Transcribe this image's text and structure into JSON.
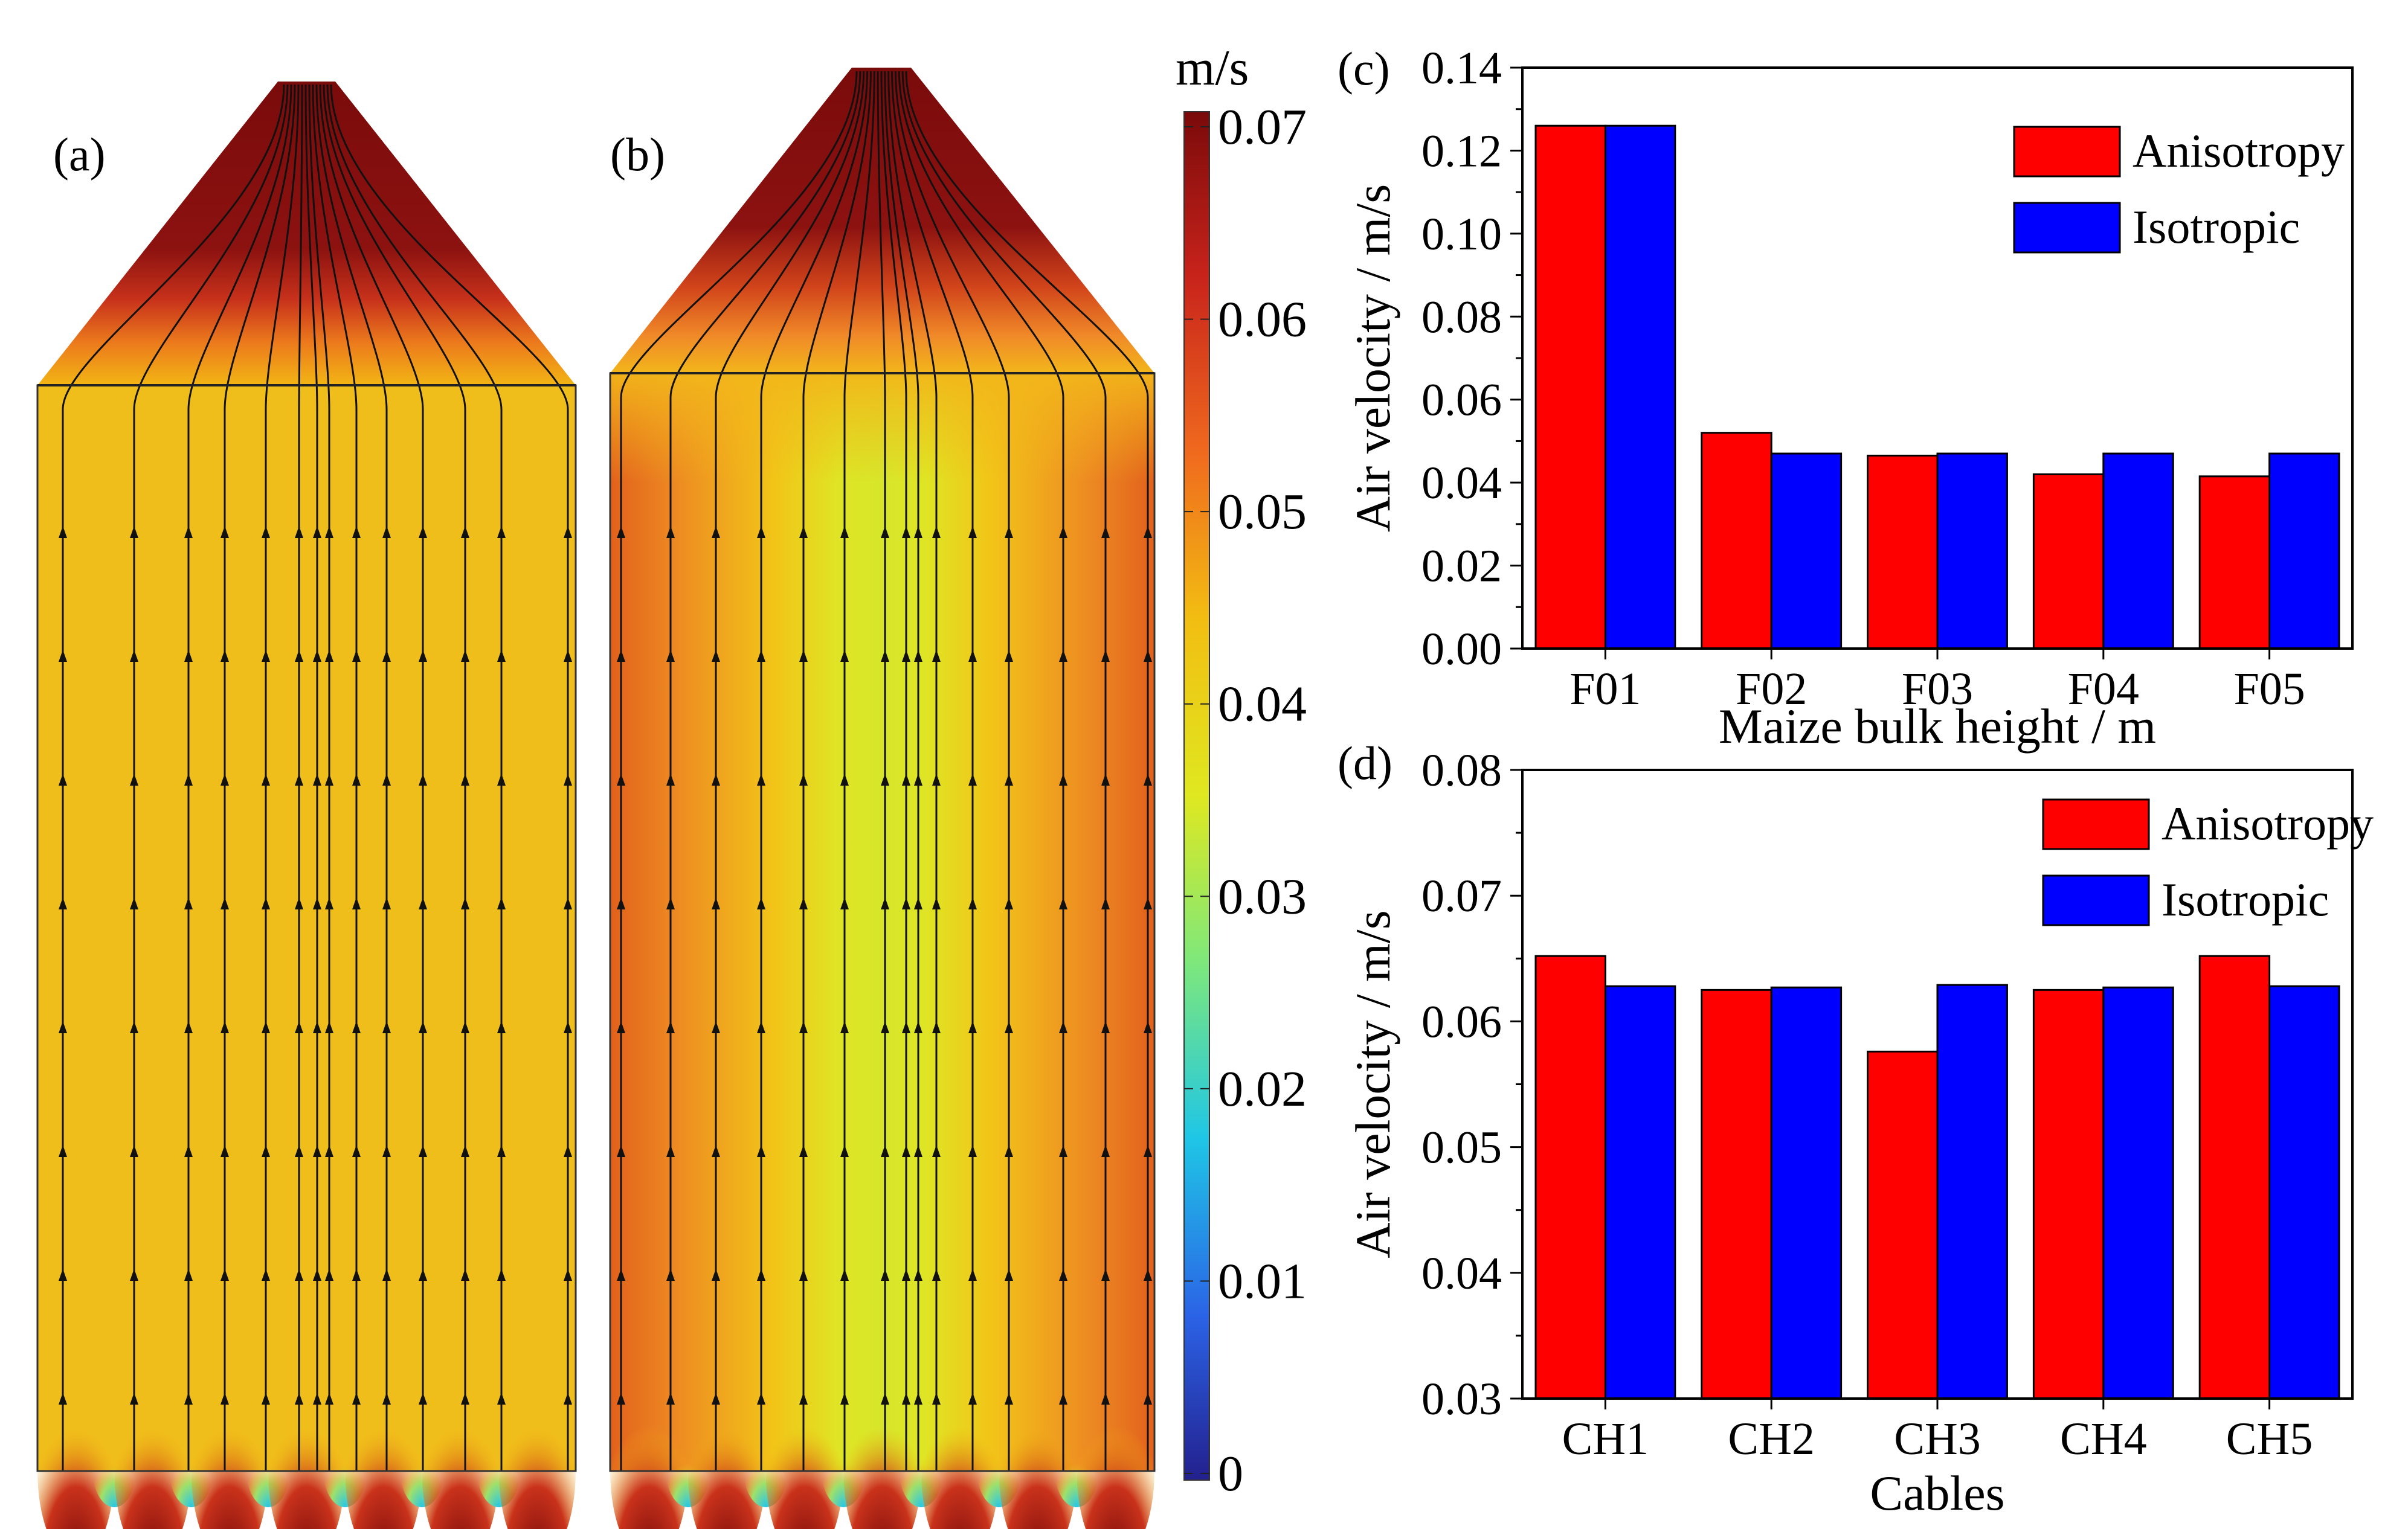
{
  "panels": {
    "a": {
      "label": "(a)"
    },
    "b": {
      "label": "(b)"
    }
  },
  "colorbar": {
    "unit": "m/s",
    "ticks": [
      "0.07",
      "0.06",
      "0.05",
      "0.04",
      "0.03",
      "0.02",
      "0.01",
      "0"
    ],
    "tick_values": [
      0.07,
      0.06,
      0.05,
      0.04,
      0.03,
      0.02,
      0.01,
      0
    ],
    "range": [
      0,
      0.07
    ],
    "colors": [
      "#7a0a0a",
      "#c8231b",
      "#f06a1e",
      "#f2bd12",
      "#dfe820",
      "#7fe87a",
      "#1fc6e6",
      "#2b63e6",
      "#23208e"
    ]
  },
  "chart_data": [
    {
      "panel_label": "(c)",
      "type": "bar",
      "categories": [
        "F01",
        "F02",
        "F03",
        "F04",
        "F05"
      ],
      "series": [
        {
          "name": "Anisotropy",
          "color": "#ff0000",
          "values": [
            0.126,
            0.052,
            0.0465,
            0.042,
            0.0415
          ]
        },
        {
          "name": "Isotropic",
          "color": "#0000ff",
          "values": [
            0.126,
            0.047,
            0.047,
            0.047,
            0.047
          ]
        }
      ],
      "xlabel": "Maize bulk height / m",
      "ylabel": "Air velocity / m/s",
      "ylim": [
        0,
        0.14
      ],
      "yticks": [
        "0.00",
        "0.02",
        "0.04",
        "0.06",
        "0.08",
        "0.10",
        "0.12",
        "0.14"
      ],
      "ytick_values": [
        0,
        0.02,
        0.04,
        0.06,
        0.08,
        0.1,
        0.12,
        0.14
      ],
      "legend": "top-right"
    },
    {
      "panel_label": "(d)",
      "type": "bar",
      "categories": [
        "CH1",
        "CH2",
        "CH3",
        "CH4",
        "CH5"
      ],
      "series": [
        {
          "name": "Anisotropy",
          "color": "#ff0000",
          "values": [
            0.0652,
            0.0625,
            0.0576,
            0.0625,
            0.0652
          ]
        },
        {
          "name": "Isotropic",
          "color": "#0000ff",
          "values": [
            0.0628,
            0.0627,
            0.0629,
            0.0627,
            0.0628
          ]
        }
      ],
      "xlabel": "Cables",
      "ylabel": "Air velocity  / m/s",
      "ylim": [
        0.03,
        0.08
      ],
      "yticks": [
        "0.03",
        "0.04",
        "0.05",
        "0.06",
        "0.07",
        "0.08"
      ],
      "ytick_values": [
        0.03,
        0.04,
        0.05,
        0.06,
        0.07,
        0.08
      ],
      "legend": "top-right"
    }
  ]
}
